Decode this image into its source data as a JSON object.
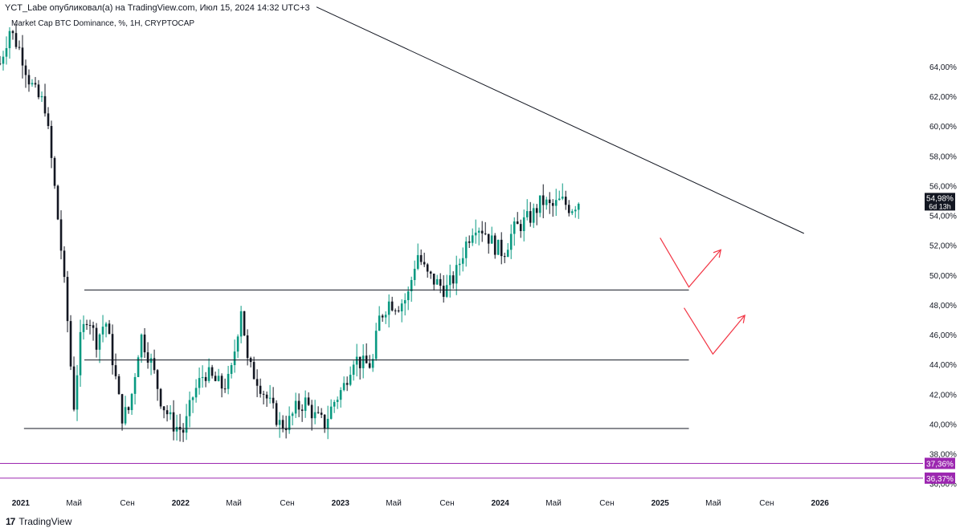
{
  "header": {
    "publisher": "YCT_Labe опубликовал(а) на TradingView.com, Июл 15, 2024 14:32 UTC+3"
  },
  "symbol": {
    "title": "Market Cap BTC Dominance, %, 1H, CRYPTOCAP"
  },
  "scale_button": "%",
  "price_tag": {
    "value": "54,98%",
    "countdown": "6d 13h"
  },
  "footer": {
    "brand": "TradingView",
    "logo_icon": "tradingview-logo-icon"
  },
  "colors": {
    "up": "#089981",
    "down": "#131722",
    "line": "#131722",
    "purple": "#9c27b0",
    "arrow": "#f23645"
  },
  "chart_data": {
    "type": "candlestick",
    "symbol": "Market Cap BTC Dominance",
    "interval": "1H",
    "ylim": [
      35.5,
      67.5
    ],
    "y_ticks": [
      {
        "v": 64,
        "label": "64,00%"
      },
      {
        "v": 62,
        "label": "62,00%"
      },
      {
        "v": 60,
        "label": "60,00%"
      },
      {
        "v": 58,
        "label": "58,00%"
      },
      {
        "v": 56,
        "label": "56,00%"
      },
      {
        "v": 54,
        "label": "54,00%"
      },
      {
        "v": 52,
        "label": "52,00%"
      },
      {
        "v": 50,
        "label": "50,00%"
      },
      {
        "v": 48,
        "label": "48,00%"
      },
      {
        "v": 46,
        "label": "46,00%"
      },
      {
        "v": 44,
        "label": "44,00%"
      },
      {
        "v": 42,
        "label": "42,00%"
      },
      {
        "v": 40,
        "label": "40,00%"
      },
      {
        "v": 38,
        "label": "38,00%"
      },
      {
        "v": 36,
        "label": "36,00%"
      }
    ],
    "x_ticks": [
      {
        "t": 2021.0,
        "label": "2021",
        "bold": true
      },
      {
        "t": 2021.333,
        "label": "Май",
        "bold": false
      },
      {
        "t": 2021.667,
        "label": "Сен",
        "bold": false
      },
      {
        "t": 2022.0,
        "label": "2022",
        "bold": true
      },
      {
        "t": 2022.333,
        "label": "Май",
        "bold": false
      },
      {
        "t": 2022.667,
        "label": "Сен",
        "bold": false
      },
      {
        "t": 2023.0,
        "label": "2023",
        "bold": true
      },
      {
        "t": 2023.333,
        "label": "Май",
        "bold": false
      },
      {
        "t": 2023.667,
        "label": "Сен",
        "bold": false
      },
      {
        "t": 2024.0,
        "label": "2024",
        "bold": true
      },
      {
        "t": 2024.333,
        "label": "Май",
        "bold": false
      },
      {
        "t": 2024.667,
        "label": "Сен",
        "bold": false
      },
      {
        "t": 2025.0,
        "label": "2025",
        "bold": true
      },
      {
        "t": 2025.333,
        "label": "Май",
        "bold": false
      },
      {
        "t": 2025.667,
        "label": "Сен",
        "bold": false
      },
      {
        "t": 2026.0,
        "label": "2026",
        "bold": true
      }
    ],
    "xlim": [
      2020.87,
      2026.65
    ],
    "last_price": 54.98,
    "price_levels": [
      {
        "name": "purple-level-1",
        "value": 37.36,
        "label": "37,36%"
      },
      {
        "name": "purple-level-2",
        "value": 36.37,
        "label": "36,37%"
      }
    ],
    "horizontal_lines": [
      {
        "name": "range-top-line",
        "value": 49.0,
        "x_end": 2025.18
      },
      {
        "name": "range-mid-line",
        "value": 44.3,
        "x_end": 2025.18
      },
      {
        "name": "range-bottom-line",
        "value": 39.7,
        "x_end": 2021.02
      }
    ],
    "trendline": {
      "x1": 2022.85,
      "y1": 68.0,
      "x2": 2025.9,
      "y2": 52.8
    },
    "arrows": [
      {
        "name": "arrow-1",
        "points": [
          [
            2025.0,
            52.5
          ],
          [
            2025.18,
            49.2
          ],
          [
            2025.38,
            51.7
          ]
        ]
      },
      {
        "name": "arrow-2",
        "points": [
          [
            2025.15,
            47.8
          ],
          [
            2025.33,
            44.7
          ],
          [
            2025.53,
            47.3
          ]
        ]
      }
    ],
    "anchor_points": [
      [
        2020.87,
        64.2
      ],
      [
        2020.93,
        66.5
      ],
      [
        2021.0,
        65.0
      ],
      [
        2021.05,
        63.2
      ],
      [
        2021.1,
        62.0
      ],
      [
        2021.15,
        61.5
      ],
      [
        2021.2,
        57.0
      ],
      [
        2021.25,
        52.0
      ],
      [
        2021.3,
        46.0
      ],
      [
        2021.33,
        41.0
      ],
      [
        2021.37,
        45.5
      ],
      [
        2021.42,
        47.5
      ],
      [
        2021.47,
        45.5
      ],
      [
        2021.53,
        47.0
      ],
      [
        2021.58,
        44.0
      ],
      [
        2021.63,
        40.5
      ],
      [
        2021.68,
        41.0
      ],
      [
        2021.75,
        46.0
      ],
      [
        2021.82,
        44.0
      ],
      [
        2021.88,
        41.5
      ],
      [
        2021.95,
        40.0
      ],
      [
        2022.02,
        39.5
      ],
      [
        2022.08,
        42.0
      ],
      [
        2022.15,
        43.5
      ],
      [
        2022.2,
        43.0
      ],
      [
        2022.26,
        42.5
      ],
      [
        2022.31,
        43.0
      ],
      [
        2022.36,
        46.5
      ],
      [
        2022.38,
        48.0
      ],
      [
        2022.42,
        44.0
      ],
      [
        2022.48,
        43.0
      ],
      [
        2022.55,
        41.5
      ],
      [
        2022.62,
        40.0
      ],
      [
        2022.67,
        40.0
      ],
      [
        2022.72,
        41.0
      ],
      [
        2022.78,
        41.5
      ],
      [
        2022.84,
        40.5
      ],
      [
        2022.9,
        40.0
      ],
      [
        2022.96,
        41.5
      ],
      [
        2023.02,
        42.5
      ],
      [
        2023.08,
        44.5
      ],
      [
        2023.14,
        44.0
      ],
      [
        2023.2,
        44.0
      ],
      [
        2023.24,
        47.0
      ],
      [
        2023.3,
        48.2
      ],
      [
        2023.36,
        48.0
      ],
      [
        2023.42,
        48.5
      ],
      [
        2023.48,
        51.5
      ],
      [
        2023.54,
        50.0
      ],
      [
        2023.6,
        49.5
      ],
      [
        2023.66,
        49.0
      ],
      [
        2023.72,
        50.0
      ],
      [
        2023.78,
        52.0
      ],
      [
        2023.84,
        53.5
      ],
      [
        2023.9,
        53.0
      ],
      [
        2023.96,
        52.0
      ],
      [
        2024.02,
        51.5
      ],
      [
        2024.08,
        53.0
      ],
      [
        2024.14,
        53.5
      ],
      [
        2024.2,
        54.0
      ],
      [
        2024.26,
        55.0
      ],
      [
        2024.32,
        54.5
      ],
      [
        2024.38,
        55.0
      ],
      [
        2024.44,
        54.5
      ],
      [
        2024.49,
        54.98
      ]
    ]
  }
}
